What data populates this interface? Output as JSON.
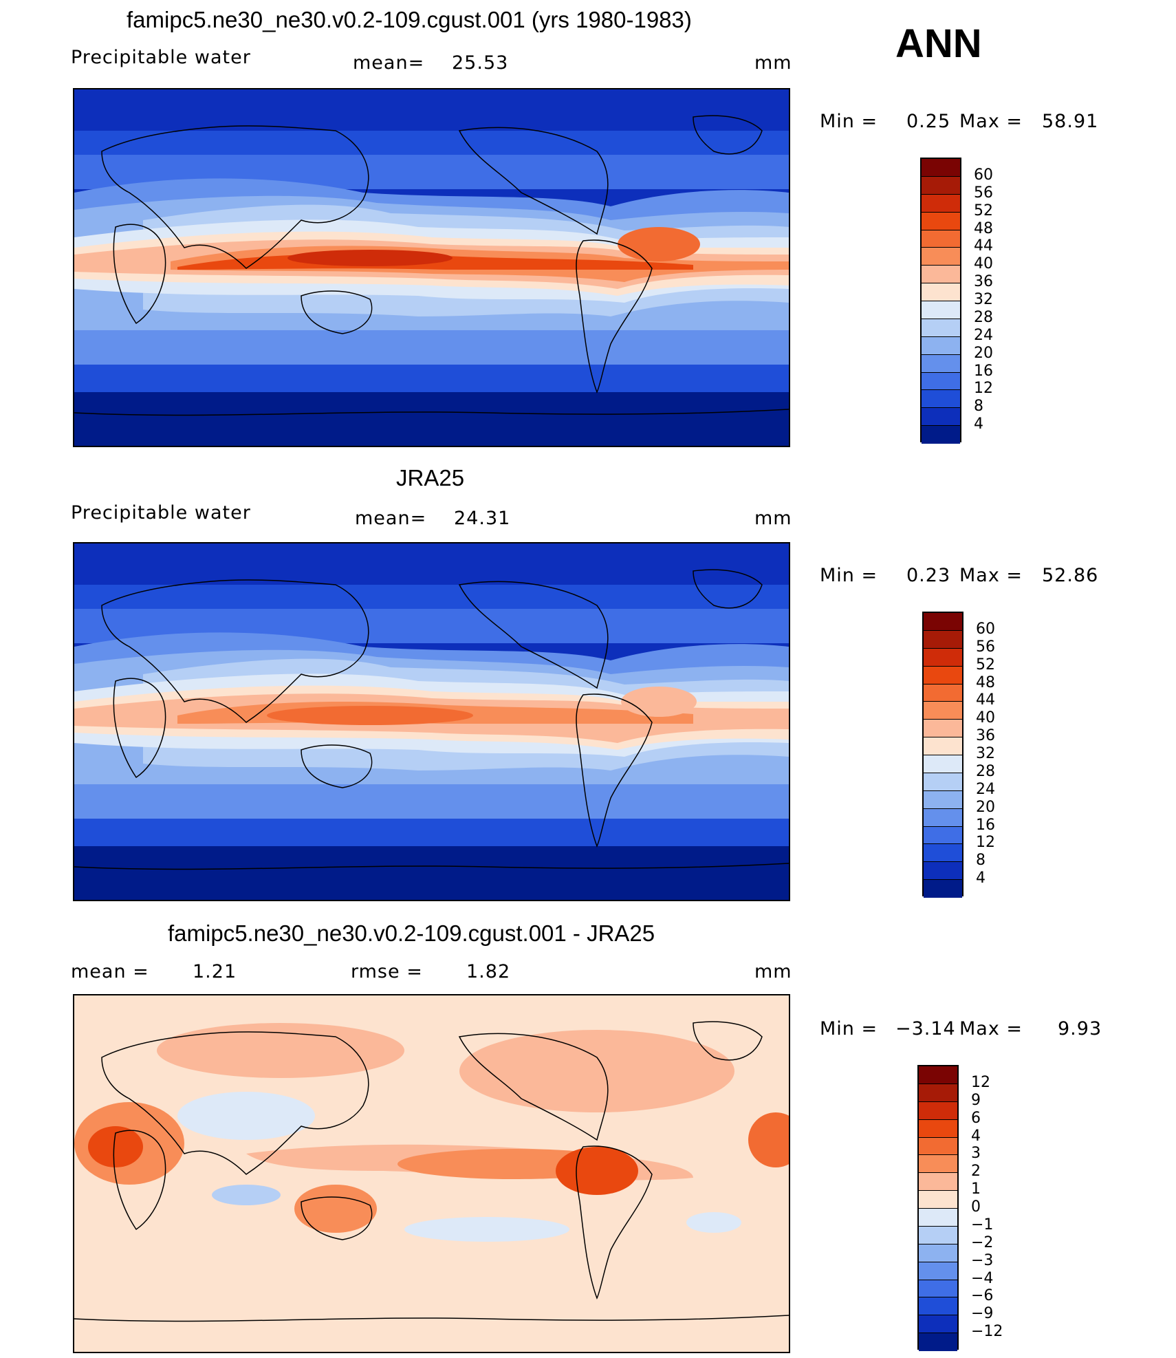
{
  "season": "ANN",
  "panels": [
    {
      "title": "famipc5.ne30_ne30.v0.2-109.cgust.001 (yrs 1980-1983)",
      "left_label": "Precipitable  water",
      "mid_label": "mean=",
      "mid_value": "25.53",
      "units": "mm",
      "min_label": "Min  =",
      "min_value": "0.25",
      "max_label": "Max  =",
      "max_value": "58.91",
      "colorbar": {
        "ticks": [
          "60",
          "56",
          "52",
          "48",
          "44",
          "40",
          "36",
          "32",
          "28",
          "24",
          "20",
          "16",
          "12",
          "8",
          "4"
        ],
        "colors": [
          "#7a0403",
          "#a61b07",
          "#cf2c09",
          "#e9480f",
          "#f26b32",
          "#f88d58",
          "#fbb899",
          "#fde3cf",
          "#dde9f8",
          "#b5cff5",
          "#8db2f0",
          "#6490ec",
          "#3f6ee6",
          "#1f4ed8",
          "#0d2fbb",
          "#001b89"
        ]
      }
    },
    {
      "title": "JRA25",
      "left_label": "Precipitable  water",
      "mid_label": "mean=",
      "mid_value": "24.31",
      "units": "mm",
      "min_label": "Min  =",
      "min_value": "0.23",
      "max_label": "Max  =",
      "max_value": "52.86",
      "colorbar": {
        "ticks": [
          "60",
          "56",
          "52",
          "48",
          "44",
          "40",
          "36",
          "32",
          "28",
          "24",
          "20",
          "16",
          "12",
          "8",
          "4"
        ],
        "colors": [
          "#7a0403",
          "#a61b07",
          "#cf2c09",
          "#e9480f",
          "#f26b32",
          "#f88d58",
          "#fbb899",
          "#fde3cf",
          "#dde9f8",
          "#b5cff5",
          "#8db2f0",
          "#6490ec",
          "#3f6ee6",
          "#1f4ed8",
          "#0d2fbb",
          "#001b89"
        ]
      }
    },
    {
      "title": "famipc5.ne30_ne30.v0.2-109.cgust.001 - JRA25",
      "left_label": "mean  =",
      "left_value": "1.21",
      "mid_label": "rmse  =",
      "mid_value": "1.82",
      "units": "mm",
      "min_label": "Min  =",
      "min_value": "−3.14",
      "max_label": "Max  =",
      "max_value": "9.93",
      "colorbar": {
        "ticks": [
          "12",
          "9",
          "6",
          "4",
          "3",
          "2",
          "1",
          "0",
          "−1",
          "−2",
          "−3",
          "−4",
          "−6",
          "−9",
          "−12"
        ],
        "colors": [
          "#7a0403",
          "#a61b07",
          "#cf2c09",
          "#e9480f",
          "#f26b32",
          "#f88d58",
          "#fbb899",
          "#fde3cf",
          "#dde9f8",
          "#b5cff5",
          "#8db2f0",
          "#6490ec",
          "#3f6ee6",
          "#1f4ed8",
          "#0d2fbb",
          "#001b89"
        ]
      }
    }
  ]
}
